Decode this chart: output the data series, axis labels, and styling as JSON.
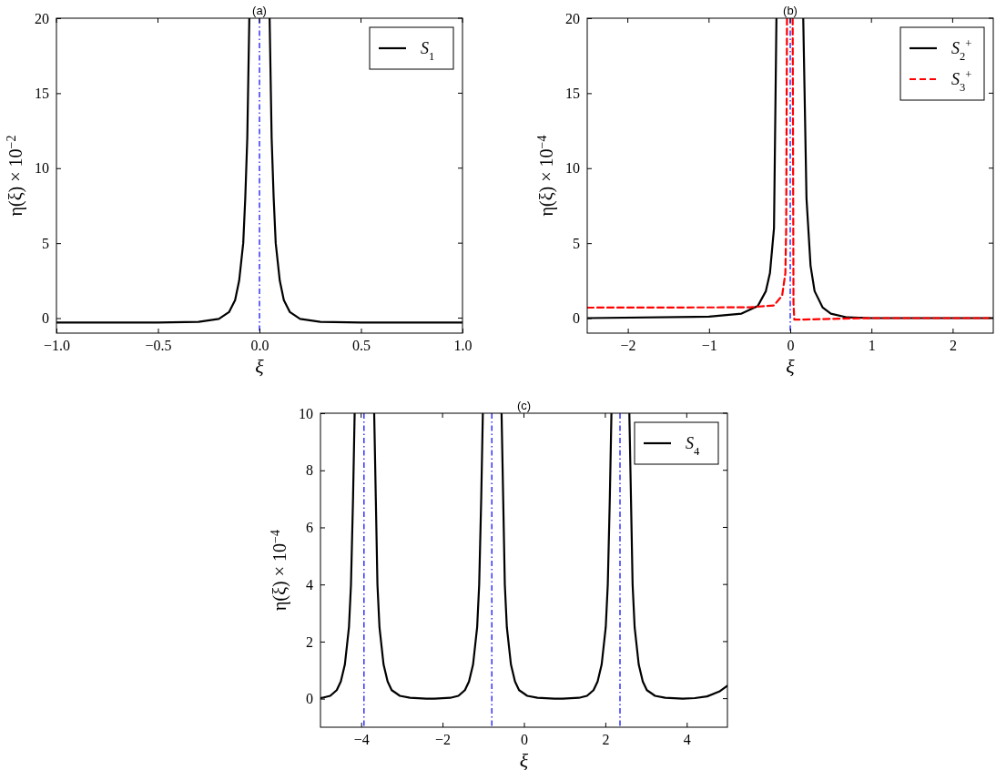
{
  "chart_data": [
    {
      "type": "line",
      "title": "(a)",
      "xlabel": "ξ",
      "ylabel": "η(ξ) × 10$^{−2}$",
      "xlim": [
        -1,
        1
      ],
      "ylim": [
        -1,
        20
      ],
      "xticks": [
        {
          "value": -1,
          "label": "−1.0"
        },
        {
          "value": -0.5,
          "label": "−0.5"
        },
        {
          "value": 0,
          "label": "0.0"
        },
        {
          "value": 0.5,
          "label": "0.5"
        },
        {
          "value": 1,
          "label": "1.0"
        }
      ],
      "yticks": [
        0,
        5,
        10,
        15,
        20
      ],
      "legend": "top right",
      "grid": false,
      "ref_lines": [
        {
          "axis": "x",
          "value": 0,
          "color": "#0000ff",
          "line_style": "dashdot"
        }
      ],
      "series": [
        {
          "name": "S$_{1}$",
          "color": "#000000",
          "line_style": "solid",
          "x": [
            -1,
            -0.5,
            -0.3,
            -0.2,
            -0.15,
            -0.12,
            -0.1,
            -0.08,
            -0.07,
            -0.06,
            -0.05,
            0,
            0.05,
            0.06,
            0.07,
            0.08,
            0.1,
            0.12,
            0.15,
            0.2,
            0.3,
            0.5,
            1
          ],
          "values": [
            -0.3,
            -0.3,
            -0.25,
            -0.05,
            0.4,
            1.2,
            2.5,
            5,
            8,
            12,
            20,
            null,
            20,
            12,
            8,
            5,
            2.5,
            1.2,
            0.4,
            -0.05,
            -0.25,
            -0.3,
            -0.3
          ]
        }
      ]
    },
    {
      "type": "line",
      "title": "(b)",
      "xlabel": "ξ",
      "ylabel": "η(ξ) × 10$^{−4}$",
      "xlim": [
        -2.5,
        2.5
      ],
      "ylim": [
        -1,
        20
      ],
      "xticks": [
        {
          "value": -2,
          "label": "−2"
        },
        {
          "value": -1,
          "label": "−1"
        },
        0,
        1,
        2
      ],
      "yticks": [
        0,
        5,
        10,
        15,
        20
      ],
      "legend": "top right",
      "grid": false,
      "ref_lines": [
        {
          "axis": "x",
          "value": 0,
          "color": "#0000ff",
          "line_style": "dashdot"
        }
      ],
      "series": [
        {
          "name": "S$_{2}$$^{+}$",
          "color": "#000000",
          "line_style": "solid",
          "x": [
            -2.5,
            -1,
            -0.6,
            -0.4,
            -0.3,
            -0.25,
            -0.2,
            -0.17,
            0,
            0.16,
            0.2,
            0.25,
            0.3,
            0.4,
            0.5,
            0.7,
            1,
            2.5
          ],
          "values": [
            0,
            0.1,
            0.3,
            0.8,
            1.8,
            3,
            6,
            20,
            null,
            20,
            8,
            3.5,
            1.8,
            0.7,
            0.3,
            0.05,
            0,
            0
          ]
        },
        {
          "name": "S$_{3}$$^{+}$",
          "color": "#ff0000",
          "line_style": "dashed",
          "x": [
            -2.5,
            -0.5,
            -0.2,
            -0.1,
            -0.06,
            -0.05,
            -0.04,
            0,
            0.03,
            0.04,
            0.05,
            0.1,
            0.5,
            1,
            2.5
          ],
          "values": [
            0.7,
            0.72,
            0.85,
            1.5,
            3,
            6,
            20,
            null,
            20,
            1,
            -0.1,
            -0.1,
            -0.05,
            0,
            0
          ]
        }
      ]
    },
    {
      "type": "line",
      "title": "(c)",
      "xlabel": "ξ",
      "ylabel": "η(ξ) × 10$^{−4}$",
      "xlim": [
        -5,
        5
      ],
      "ylim": [
        -1,
        10
      ],
      "xticks": [
        {
          "value": -4,
          "label": "−4"
        },
        {
          "value": -2,
          "label": "−2"
        },
        0,
        2,
        4
      ],
      "yticks": [
        0,
        2,
        4,
        6,
        8,
        10
      ],
      "legend": "top right",
      "grid": false,
      "ref_lines": [
        {
          "axis": "x",
          "value": -3.93,
          "color": "#0000ff",
          "line_style": "dashdot"
        },
        {
          "axis": "x",
          "value": -0.79,
          "color": "#0000ff",
          "line_style": "dashdot"
        },
        {
          "axis": "x",
          "value": 2.36,
          "color": "#0000ff",
          "line_style": "dashdot"
        }
      ],
      "series": [
        {
          "name": "S$_{4}$",
          "color": "#000000",
          "line_style": "solid",
          "x": [
            -5,
            -4.96,
            -4.76,
            -4.6,
            -4.5,
            -4.4,
            -4.3,
            -4.25,
            -4.2,
            -4.16,
            -3.92,
            -3.68,
            -3.64,
            -3.6,
            -3.55,
            -3.45,
            -3.35,
            -3.25,
            -3.05,
            -2.8,
            -2.4,
            -2.2,
            -1.81,
            -1.61,
            -1.45,
            -1.35,
            -1.25,
            -1.15,
            -1.1,
            -1.05,
            -1.01,
            -0.78,
            -0.55,
            -0.51,
            -0.47,
            -0.42,
            -0.32,
            -0.22,
            -0.12,
            0.08,
            0.33,
            0.75,
            0.95,
            1.35,
            1.55,
            1.71,
            1.81,
            1.91,
            2.01,
            2.06,
            2.11,
            2.15,
            2.37,
            2.59,
            2.63,
            2.67,
            2.72,
            2.82,
            2.92,
            3.02,
            3.22,
            3.47,
            3.9,
            4.2,
            4.5,
            4.8,
            5
          ],
          "values": [
            0.02,
            0.03,
            0.1,
            0.3,
            0.6,
            1.2,
            2.5,
            4,
            7,
            10,
            null,
            10,
            7,
            4,
            2.5,
            1.2,
            0.6,
            0.3,
            0.1,
            0.03,
            0,
            0,
            0.03,
            0.1,
            0.3,
            0.6,
            1.2,
            2.5,
            4,
            7,
            10,
            null,
            10,
            7,
            4,
            2.5,
            1.2,
            0.6,
            0.3,
            0.1,
            0.03,
            0,
            0,
            0.03,
            0.1,
            0.3,
            0.6,
            1.2,
            2.5,
            4,
            7,
            10,
            null,
            10,
            7,
            4,
            2.5,
            1.2,
            0.6,
            0.3,
            0.1,
            0.03,
            0,
            0.02,
            0.08,
            0.25,
            0.45
          ]
        }
      ]
    }
  ]
}
